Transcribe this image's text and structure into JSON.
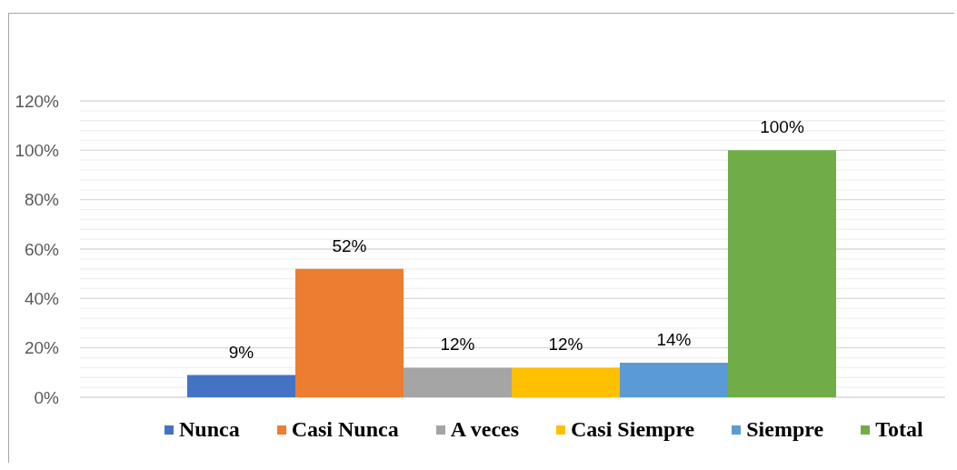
{
  "chart_data": {
    "type": "bar",
    "categories": [
      null
    ],
    "series": [
      {
        "name": "Nunca",
        "color": "#4472c4",
        "values": [
          9
        ],
        "value_labels": [
          "9%"
        ]
      },
      {
        "name": "Casi Nunca",
        "color": "#ed7d31",
        "values": [
          52
        ],
        "value_labels": [
          "52%"
        ]
      },
      {
        "name": "A veces",
        "color": "#a5a5a5",
        "values": [
          12
        ],
        "value_labels": [
          "12%"
        ]
      },
      {
        "name": "Casi Siempre",
        "color": "#ffc000",
        "values": [
          12
        ],
        "value_labels": [
          "12%"
        ]
      },
      {
        "name": "Siempre",
        "color": "#5b9bd5",
        "values": [
          14
        ],
        "value_labels": [
          "14%"
        ]
      },
      {
        "name": "Total",
        "color": "#70ad47",
        "values": [
          100
        ],
        "value_labels": [
          "100%"
        ]
      }
    ],
    "ylim": [
      0,
      120
    ],
    "yticks": [
      {
        "value": 0,
        "label": "0%"
      },
      {
        "value": 4,
        "label": null
      },
      {
        "value": 8,
        "label": null
      },
      {
        "value": 12,
        "label": null
      },
      {
        "value": 16,
        "label": null
      },
      {
        "value": 20,
        "label": "20%"
      },
      {
        "value": 24,
        "label": null
      },
      {
        "value": 28,
        "label": null
      },
      {
        "value": 32,
        "label": null
      },
      {
        "value": 36,
        "label": null
      },
      {
        "value": 40,
        "label": "40%"
      },
      {
        "value": 44,
        "label": null
      },
      {
        "value": 48,
        "label": null
      },
      {
        "value": 52,
        "label": null
      },
      {
        "value": 56,
        "label": null
      },
      {
        "value": 60,
        "label": "60%"
      },
      {
        "value": 64,
        "label": null
      },
      {
        "value": 68,
        "label": null
      },
      {
        "value": 72,
        "label": null
      },
      {
        "value": 76,
        "label": null
      },
      {
        "value": 80,
        "label": "80%"
      },
      {
        "value": 84,
        "label": null
      },
      {
        "value": 88,
        "label": null
      },
      {
        "value": 92,
        "label": null
      },
      {
        "value": 96,
        "label": null
      },
      {
        "value": 100,
        "label": "100%"
      },
      {
        "value": 104,
        "label": null
      },
      {
        "value": 108,
        "label": null
      },
      {
        "value": 112,
        "label": null
      },
      {
        "value": 116,
        "label": null
      },
      {
        "value": 120,
        "label": "120%"
      }
    ],
    "grid": "y",
    "legend": "bottom",
    "tick_labels": "y"
  }
}
